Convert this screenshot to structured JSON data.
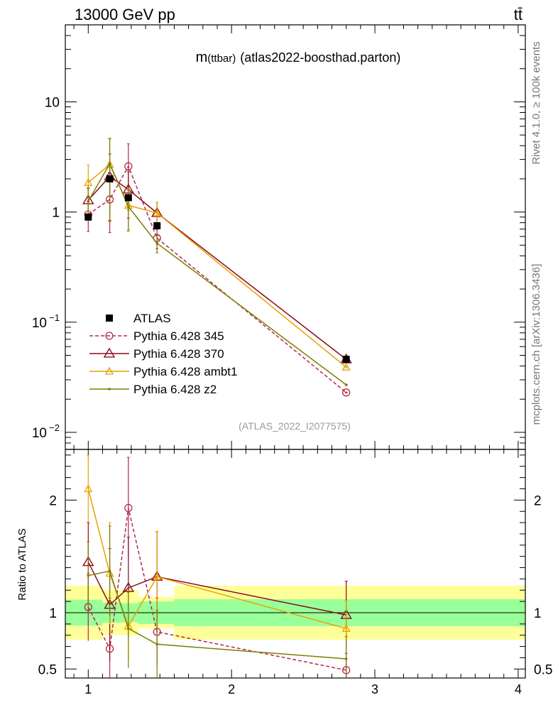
{
  "header": {
    "energy_label": "13000 GeV pp",
    "process_label": "tt̄"
  },
  "side_labels": {
    "rivet": "Rivet 4.1.0, ≥ 100k events",
    "mcplots": "mcplots.cern.ch [arXiv:1306.3436]"
  },
  "chart_data": {
    "type": "line",
    "title": "m(ttbar) (atlas2022-boosthad.parton)",
    "title_main": "m",
    "title_sub": "(ttbar)",
    "title_rest": "(atlas2022-boosthad.parton)",
    "analysis_id": "(ATLAS_2022_I2077575)",
    "xlabel": "",
    "ylabel_ratio": "Ratio to ATLAS",
    "xlim": [
      0.84,
      4.05
    ],
    "ylim_main": [
      0.007,
      50
    ],
    "ylim_ratio": [
      0.42,
      2.45
    ],
    "x_ticks": [
      "1",
      "2",
      "3",
      "4"
    ],
    "y_ticks_main": [
      {
        "value": 0.01,
        "base": "10",
        "exp": "−2"
      },
      {
        "value": 0.1,
        "base": "10",
        "exp": "−1"
      },
      {
        "value": 1,
        "base": "1",
        "exp": ""
      },
      {
        "value": 10,
        "base": "10",
        "exp": ""
      }
    ],
    "y_ticks_ratio": [
      "0.5",
      "1",
      "2"
    ],
    "x": [
      1.0,
      1.15,
      1.28,
      1.48,
      2.8
    ],
    "atlas": {
      "name": "ATLAS",
      "values": [
        0.9,
        2.0,
        1.35,
        0.75,
        0.046
      ],
      "bins": [
        [
          0.84,
          1.1
        ],
        [
          1.1,
          1.22
        ],
        [
          1.22,
          1.35
        ],
        [
          1.35,
          1.6
        ],
        [
          1.6,
          4.05
        ]
      ],
      "band_inner": [
        0.115,
        0.09,
        0.085,
        0.1,
        0.12
      ],
      "band_outer": [
        0.24,
        0.2,
        0.2,
        0.14,
        0.24
      ]
    },
    "series": [
      {
        "name": "Pythia 6.428 345",
        "color": "#b3294d",
        "marker": "circle",
        "dash": true,
        "values": [
          0.95,
          1.3,
          2.6,
          0.58,
          0.023
        ],
        "errors": [
          0.3,
          0.5,
          0.6,
          0.2,
          0.01
        ],
        "ratio": [
          1.05,
          0.68,
          1.93,
          0.83,
          0.49
        ],
        "ratio_err": [
          0.3,
          0.45,
          0.45,
          0.3,
          0.15
        ]
      },
      {
        "name": "Pythia 6.428 370",
        "color": "#8b0a1e",
        "marker": "triangle",
        "dash": false,
        "values": [
          1.28,
          2.1,
          1.6,
          0.98,
          0.046
        ],
        "errors": [
          0.3,
          0.6,
          0.45,
          0.25,
          0.02
        ],
        "ratio": [
          1.45,
          1.07,
          1.22,
          1.32,
          0.98
        ],
        "ratio_err": [
          0.35,
          0.5,
          0.45,
          0.4,
          0.3
        ]
      },
      {
        "name": "Pythia 6.428 ambt1",
        "color": "#e8a000",
        "marker": "triangle-open",
        "dash": false,
        "values": [
          1.85,
          2.7,
          1.15,
          0.98,
          0.039
        ],
        "errors": [
          0.45,
          0.7,
          0.4,
          0.25,
          0.015
        ],
        "ratio": [
          2.1,
          1.35,
          0.88,
          1.32,
          0.86
        ],
        "ratio_err": [
          0.3,
          0.45,
          0.3,
          0.4,
          0.25
        ]
      },
      {
        "name": "Pythia 6.428 z2",
        "color": "#7d7d00",
        "marker": "dot",
        "dash": false,
        "values": [
          1.25,
          2.75,
          1.12,
          0.52,
          0.027
        ],
        "errors": [
          0.3,
          0.7,
          0.4,
          0.18,
          0.012
        ],
        "ratio": [
          1.33,
          1.37,
          0.86,
          0.72,
          0.59
        ],
        "ratio_err": [
          0.3,
          0.4,
          0.35,
          0.3,
          0.2
        ]
      }
    ]
  }
}
